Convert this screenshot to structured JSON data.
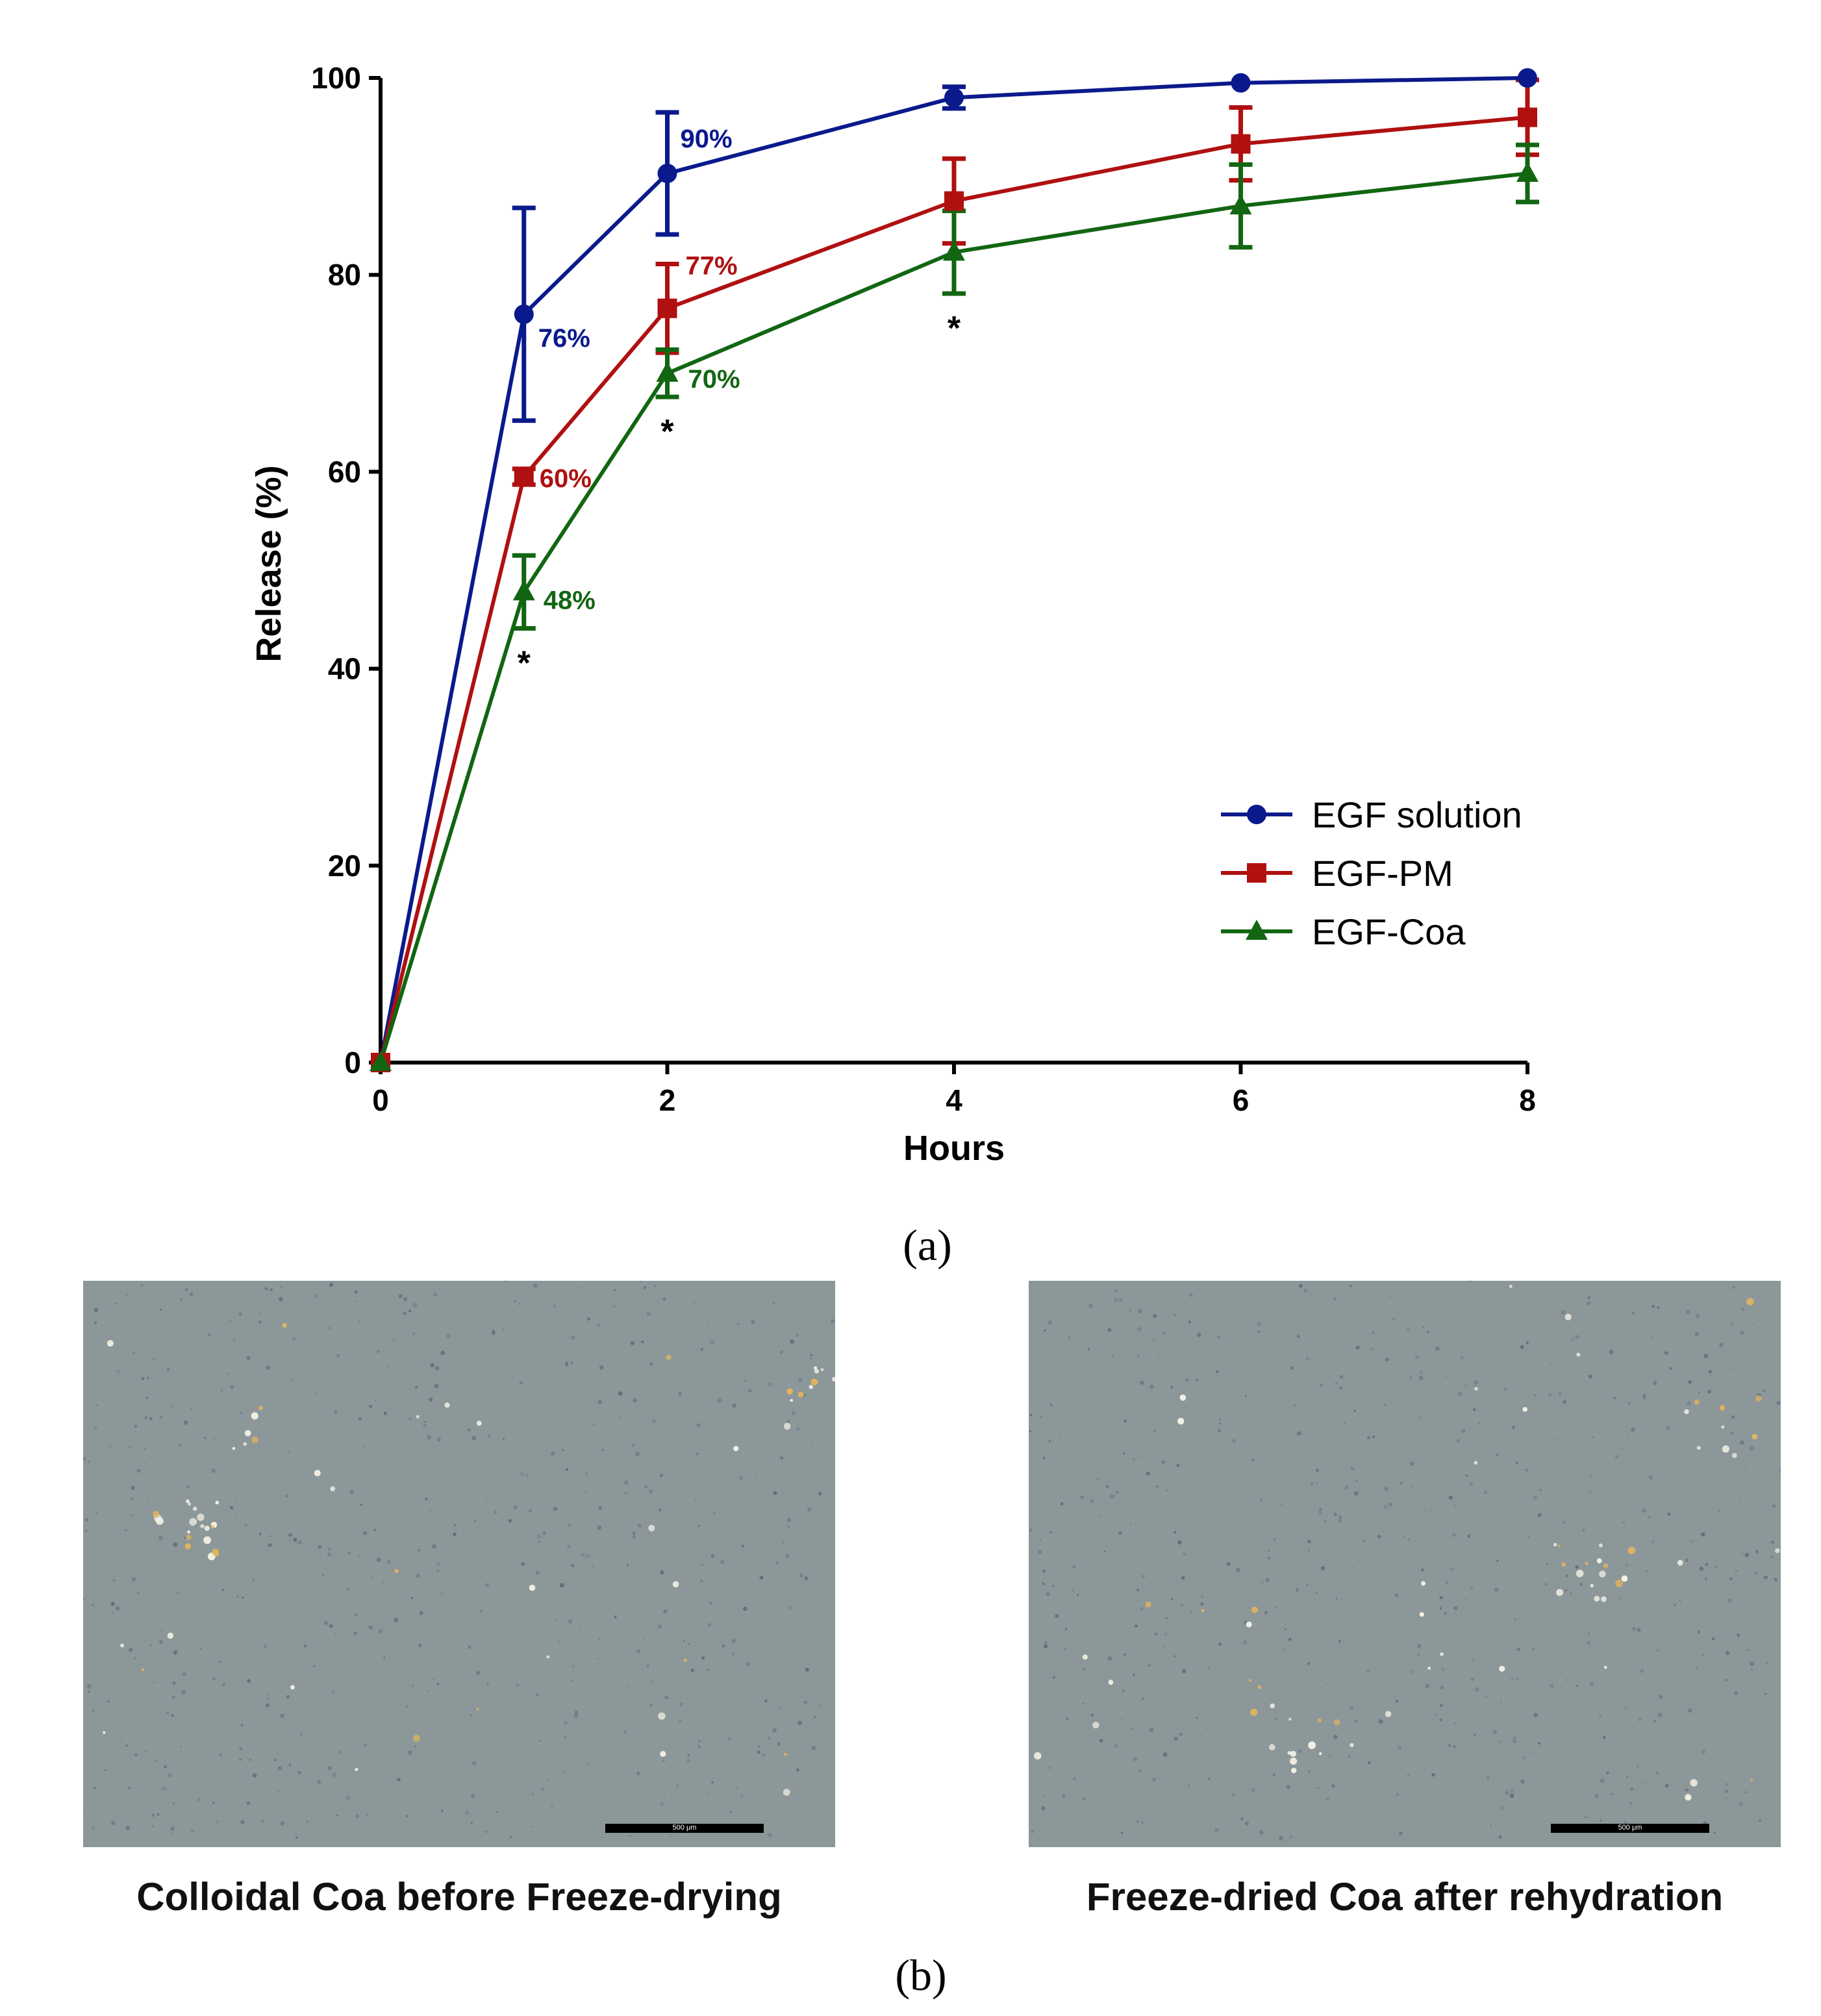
{
  "chart_data": {
    "type": "line",
    "xlabel": "Hours",
    "ylabel": "Release (%)",
    "xlim": [
      0,
      8
    ],
    "ylim": [
      0,
      100
    ],
    "x_ticks": [
      "0",
      "2",
      "4",
      "6",
      "8"
    ],
    "y_ticks": [
      "0",
      "20",
      "40",
      "60",
      "80",
      "100"
    ],
    "x": [
      0,
      1,
      2,
      4,
      6,
      8
    ],
    "legend_position": "bottom-right",
    "series": [
      {
        "name": "EGF solution",
        "color": "#0a1a8c",
        "marker": "circle",
        "values": [
          0,
          76,
          90.3,
          98,
          99.5,
          100
        ],
        "errors": [
          0,
          10.8,
          6.2,
          1.1,
          0.3,
          0.2
        ],
        "labels": [
          null,
          "76%",
          "90%",
          null,
          null,
          null
        ]
      },
      {
        "name": "EGF-PM",
        "color": "#b01010",
        "marker": "square",
        "values": [
          0,
          59.5,
          76.6,
          87.5,
          93.3,
          96
        ],
        "errors": [
          0,
          0.8,
          4.5,
          4.3,
          3.7,
          3.8
        ],
        "labels": [
          null,
          "60%",
          "77%",
          null,
          null,
          null
        ]
      },
      {
        "name": "EGF-Coa",
        "color": "#126612",
        "marker": "triangle",
        "values": [
          0,
          47.8,
          70,
          82.3,
          87,
          90.3
        ],
        "errors": [
          0,
          3.7,
          2.4,
          4.2,
          4.2,
          2.9
        ],
        "labels": [
          null,
          "48%",
          "70%",
          null,
          null,
          null
        ]
      }
    ],
    "significance_marks": [
      {
        "x": 1,
        "y": 41,
        "text": "*"
      },
      {
        "x": 2,
        "y": 64.5,
        "text": "*"
      },
      {
        "x": 4,
        "y": 75,
        "text": "*"
      }
    ]
  },
  "panel_labels": {
    "a": "(a)",
    "b": "(b)"
  },
  "micrographs": [
    {
      "caption": "Colloidal Coa before Freeze-drying",
      "scale_label": "500 μm"
    },
    {
      "caption": "Freeze-dried Coa after rehydration",
      "scale_label": "500 μm"
    }
  ],
  "colors": {
    "axis": "#000000",
    "photo_background": "#8c979a"
  }
}
